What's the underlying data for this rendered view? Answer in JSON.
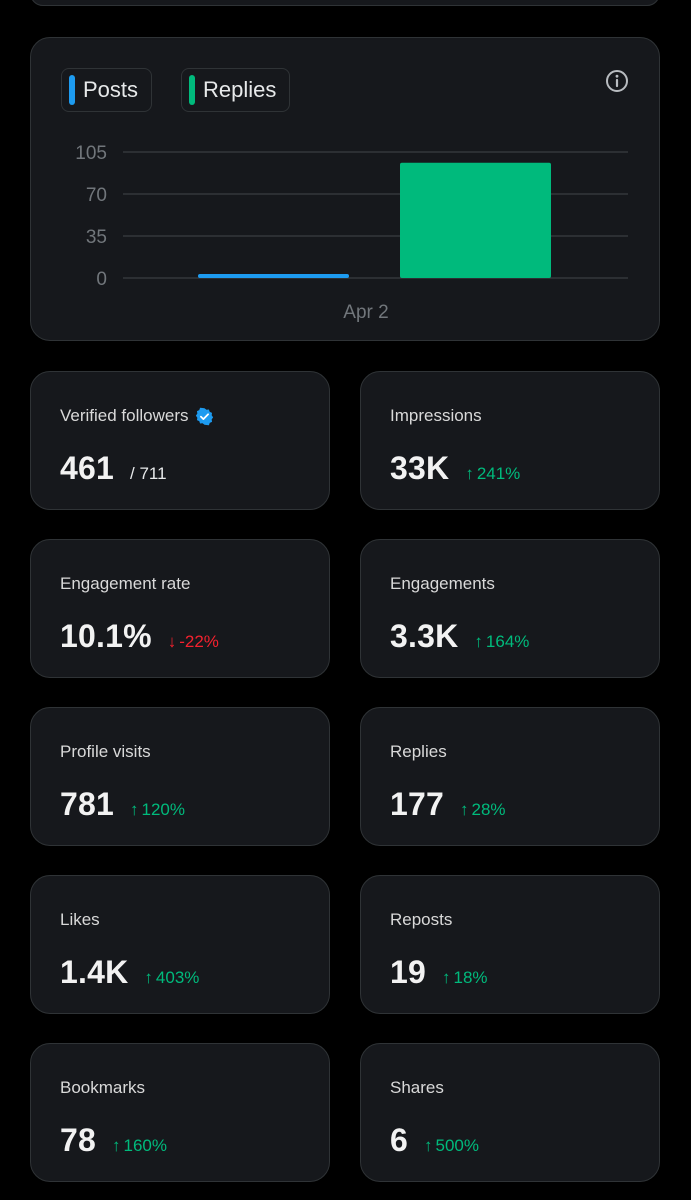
{
  "chart": {
    "legend": [
      {
        "label": "Posts",
        "color": "#1d9bf0"
      },
      {
        "label": "Replies",
        "color": "#00ba7c"
      }
    ],
    "info_icon": "info-icon"
  },
  "chart_data": {
    "type": "bar",
    "categories": [
      "Apr 2"
    ],
    "series": [
      {
        "name": "Posts",
        "values": [
          2
        ]
      },
      {
        "name": "Replies",
        "values": [
          96
        ]
      }
    ],
    "yticks": [
      "105",
      "70",
      "35",
      "0"
    ],
    "ylim": [
      0,
      105
    ],
    "grid": true,
    "legend_position": "top-left"
  },
  "metrics": [
    {
      "label": "Verified followers",
      "value": "461",
      "sub": "/ 711",
      "icon": "verified-badge-icon"
    },
    {
      "label": "Impressions",
      "value": "33K",
      "change": "241%",
      "direction": "up"
    },
    {
      "label": "Engagement rate",
      "value": "10.1%",
      "change": "-22%",
      "direction": "down"
    },
    {
      "label": "Engagements",
      "value": "3.3K",
      "change": "164%",
      "direction": "up"
    },
    {
      "label": "Profile visits",
      "value": "781",
      "change": "120%",
      "direction": "up"
    },
    {
      "label": "Replies",
      "value": "177",
      "change": "28%",
      "direction": "up"
    },
    {
      "label": "Likes",
      "value": "1.4K",
      "change": "403%",
      "direction": "up"
    },
    {
      "label": "Reposts",
      "value": "19",
      "change": "18%",
      "direction": "up"
    },
    {
      "label": "Bookmarks",
      "value": "78",
      "change": "160%",
      "direction": "up"
    },
    {
      "label": "Shares",
      "value": "6",
      "change": "500%",
      "direction": "up"
    }
  ],
  "colors": {
    "up": "#00ba7c",
    "down": "#f4212e",
    "accent": "#1d9bf0"
  }
}
